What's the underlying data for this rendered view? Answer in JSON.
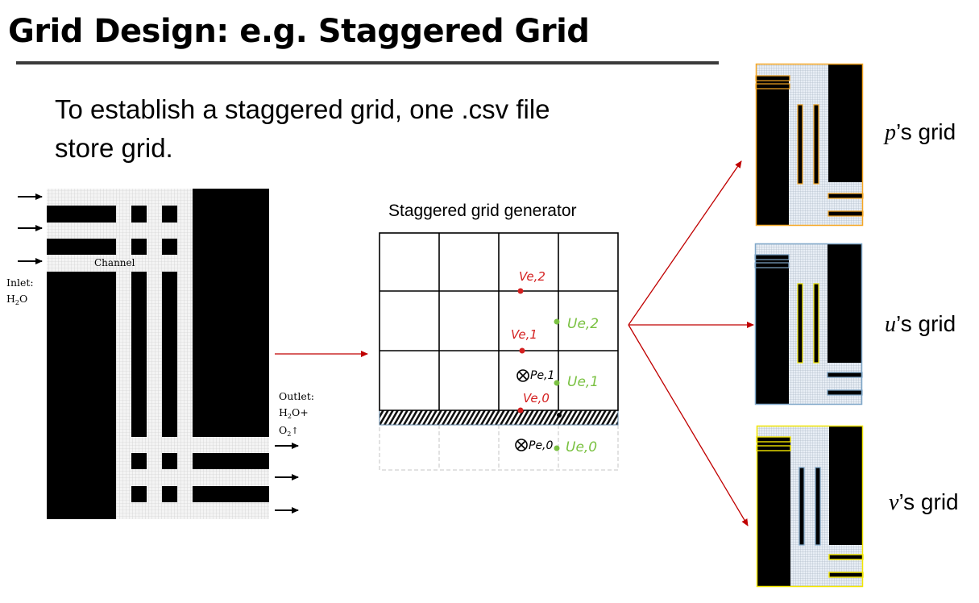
{
  "slide": {
    "title": "Grid Design: e.g. Staggered Grid",
    "body_line1": "To establish a staggered grid, one .csv file",
    "body_line2": "store grid."
  },
  "domain_figure": {
    "channel_label": "Channel",
    "inlet_label": "Inlet:",
    "inlet_species": "H",
    "inlet_sub": "2",
    "inlet_species_tail": "O",
    "outlet_label": "Outlet:",
    "outlet_line2_a": "H",
    "outlet_line2_sub": "2",
    "outlet_line2_b": "O+",
    "outlet_line3_a": "O",
    "outlet_line3_sub": "2"
  },
  "generator": {
    "title": "Staggered grid generator",
    "annotations": {
      "v_i2": "Ve,2",
      "v_i1": "Ve,1",
      "v_i0": "Ve,0",
      "u_i2": "Ue,2",
      "u_i1": "Ue,1",
      "u_i0": "Ue,0",
      "p_i1": "Pe,1",
      "p_i0": "Pe,0"
    }
  },
  "outputs": {
    "p_symbol": "p",
    "p_suffix": "’s grid",
    "u_symbol": "u",
    "u_suffix": "’s grid",
    "v_symbol": "v",
    "v_suffix": "’s grid"
  },
  "colors": {
    "accent_red": "#c00000",
    "velocity_red": "#d42020",
    "velocity_green": "#7ac142",
    "p_grid_border": "#f5a623",
    "u_grid_border": "#7fa7c9",
    "v_grid_border": "#f2e600"
  },
  "icons": {
    "inlet_arrows": "arrow-right-icon",
    "outlet_arrows": "arrow-right-icon",
    "outlet_up": "arrow-up-icon",
    "pressure_marker": "circle-cross-icon"
  }
}
